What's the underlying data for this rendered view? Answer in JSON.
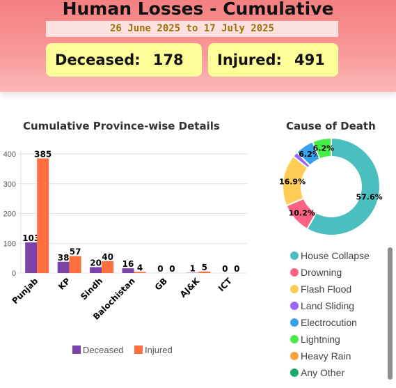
{
  "header": {
    "title": "Human Losses - Cumulative",
    "date_range": "26 June 2025 to 17 July 2025",
    "deceased_label": "Deceased:",
    "deceased_value": "178",
    "injured_label": "Injured:",
    "injured_value": "491"
  },
  "chart_data": [
    {
      "type": "bar",
      "title": "Cumulative Province-wise Details",
      "categories": [
        "Punjab",
        "KP",
        "Sindh",
        "Balochistan",
        "GB",
        "AJ&K",
        "ICT"
      ],
      "series": [
        {
          "name": "Deceased",
          "color": "#7b43a8",
          "values": [
            103,
            38,
            20,
            16,
            0,
            1,
            0
          ]
        },
        {
          "name": "Injured",
          "color": "#ff6f3f",
          "values": [
            385,
            57,
            40,
            4,
            0,
            5,
            0
          ]
        }
      ],
      "ylim": [
        0,
        400
      ],
      "yticks": [
        0,
        100,
        200,
        300,
        400
      ],
      "grid": true,
      "legend": "bottom"
    },
    {
      "type": "pie",
      "title": "Cause of Death",
      "donut": true,
      "slices": [
        {
          "label": "House Collapse",
          "value": 57.6,
          "display": "57.6%",
          "color": "#4bbfbf"
        },
        {
          "label": "Drowning",
          "value": 10.2,
          "display": "10.2%",
          "color": "#ff6384"
        },
        {
          "label": "Flash Flood",
          "value": 16.9,
          "display": "16.9%",
          "color": "#ffcd56"
        },
        {
          "label": "Land Sliding",
          "value": 1.7,
          "display": "",
          "color": "#9966ff"
        },
        {
          "label": "Electrocution",
          "value": 6.2,
          "display": "6.2%",
          "color": "#36a2eb"
        },
        {
          "label": "Lightning",
          "value": 6.2,
          "display": "6.2%",
          "color": "#44ee44"
        },
        {
          "label": "Heavy Rain",
          "value": 0,
          "display": "",
          "color": "#ff9f40"
        },
        {
          "label": "Any Other",
          "value": 0,
          "display": "",
          "color": "#1fa870"
        }
      ],
      "legend": "bottom"
    }
  ]
}
